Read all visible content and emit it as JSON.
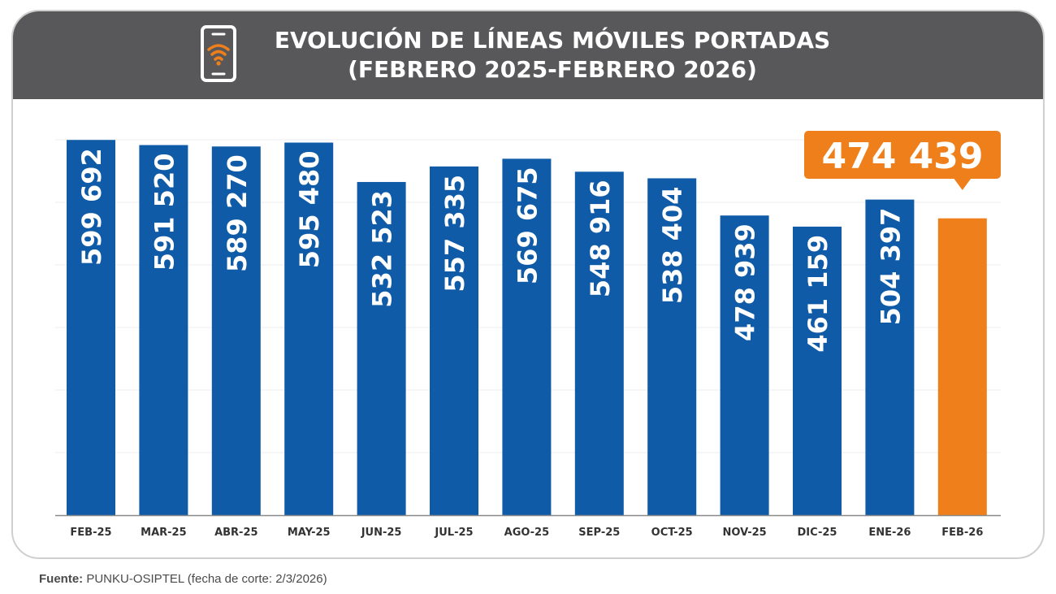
{
  "title": {
    "line1": "EVOLUCIÓN DE LÍNEAS MÓVILES PORTADAS",
    "line2": "(FEBRERO 2025-FEBRERO 2026)"
  },
  "icon": "mobile-phone-wifi-icon",
  "colors": {
    "header_bg": "#58585a",
    "bar": "#0f5ba7",
    "highlight": "#ef7f1a",
    "label_text": "#ffffff",
    "axis_text": "#333333"
  },
  "chart_data": {
    "type": "bar",
    "categories": [
      "FEB-25",
      "MAR-25",
      "ABR-25",
      "MAY-25",
      "JUN-25",
      "JUL-25",
      "AGO-25",
      "SEP-25",
      "OCT-25",
      "NOV-25",
      "DIC-25",
      "ENE-26",
      "FEB-26"
    ],
    "values": [
      599692,
      591520,
      589270,
      595480,
      532523,
      557335,
      569675,
      548916,
      538404,
      478939,
      461159,
      504397,
      474439
    ],
    "value_labels": [
      "599 692",
      "591 520",
      "589 270",
      "595 480",
      "532 523",
      "557 335",
      "569 675",
      "548 916",
      "538 404",
      "478 939",
      "461 159",
      "504 397",
      "474 439"
    ],
    "highlight_index": 12,
    "highlight_label": "474 439",
    "ylim": [
      0,
      600000
    ],
    "grid": true,
    "title": "EVOLUCIÓN DE LÍNEAS MÓVILES PORTADAS (FEBRERO 2025-FEBRERO 2026)",
    "xlabel": "",
    "ylabel": ""
  },
  "source": {
    "label": "Fuente:",
    "text": "PUNKU-OSIPTEL (fecha de corte: 2/3/2026)"
  }
}
